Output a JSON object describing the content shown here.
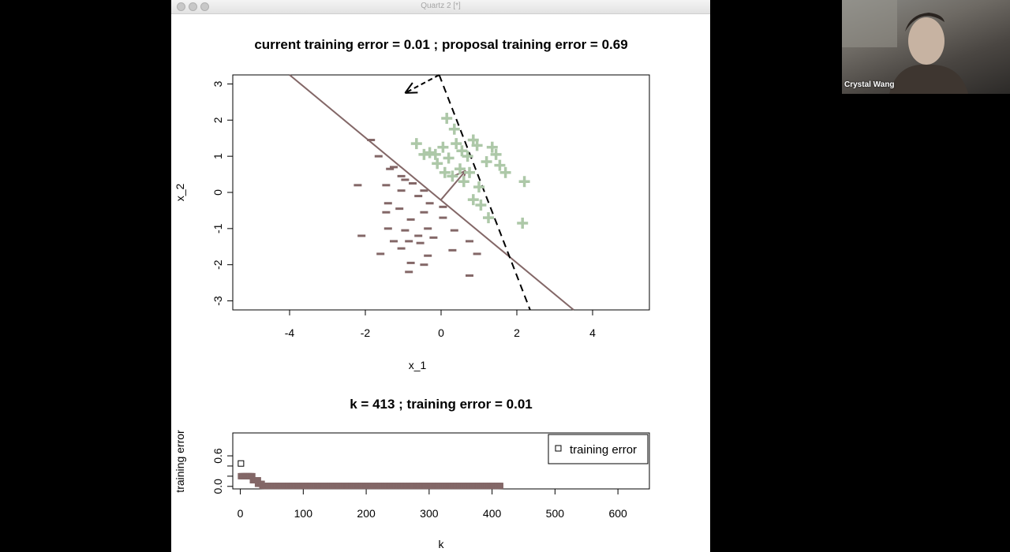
{
  "window": {
    "title": "Quartz 2 [*]"
  },
  "video": {
    "participant_name": "Crystal Wang"
  },
  "chart_data": [
    {
      "type": "scatter",
      "title": "current training error =  0.01 ; proposal training error =  0.69",
      "xlabel": "x_1",
      "ylabel": "x_2",
      "xlim": [
        -5.5,
        5.5
      ],
      "ylim": [
        -3.25,
        3.25
      ],
      "x_ticks": [
        -4,
        -2,
        0,
        2,
        4
      ],
      "y_ticks": [
        -3,
        -2,
        -1,
        0,
        1,
        2,
        3
      ],
      "colors": {
        "positive": "#adc8a8",
        "negative": "#836767",
        "current_line": "#836767",
        "proposal_line": "#000000"
      },
      "series": [
        {
          "marker": "+",
          "points": [
            [
              0.15,
              2.05
            ],
            [
              0.35,
              1.75
            ],
            [
              0.85,
              1.45
            ],
            [
              1.35,
              1.25
            ],
            [
              -0.65,
              1.35
            ],
            [
              -0.3,
              1.1
            ],
            [
              0.05,
              1.25
            ],
            [
              0.55,
              1.15
            ],
            [
              0.95,
              1.3
            ],
            [
              1.45,
              1.05
            ],
            [
              1.55,
              0.75
            ],
            [
              1.2,
              0.85
            ],
            [
              -0.1,
              0.8
            ],
            [
              0.2,
              0.95
            ],
            [
              0.5,
              0.65
            ],
            [
              0.75,
              0.55
            ],
            [
              0.3,
              0.45
            ],
            [
              0.6,
              0.3
            ],
            [
              -0.15,
              1.05
            ],
            [
              0.1,
              0.55
            ],
            [
              1.0,
              0.15
            ],
            [
              0.85,
              -0.2
            ],
            [
              1.05,
              -0.35
            ],
            [
              1.25,
              -0.7
            ],
            [
              2.2,
              0.3
            ],
            [
              2.15,
              -0.85
            ],
            [
              -0.45,
              1.05
            ],
            [
              0.7,
              1.0
            ],
            [
              1.7,
              0.55
            ],
            [
              0.4,
              1.35
            ]
          ]
        },
        {
          "marker": "-",
          "points": [
            [
              -1.85,
              1.45
            ],
            [
              -1.65,
              1.0
            ],
            [
              -1.35,
              0.65
            ],
            [
              -1.25,
              0.7
            ],
            [
              -1.05,
              0.45
            ],
            [
              -0.75,
              0.25
            ],
            [
              -0.45,
              0.05
            ],
            [
              -2.2,
              0.2
            ],
            [
              -1.45,
              0.2
            ],
            [
              -0.95,
              0.35
            ],
            [
              -1.05,
              0.05
            ],
            [
              -0.6,
              -0.1
            ],
            [
              -1.4,
              -0.3
            ],
            [
              -1.45,
              -0.55
            ],
            [
              -1.1,
              -0.45
            ],
            [
              -0.3,
              -0.3
            ],
            [
              -0.45,
              -0.55
            ],
            [
              -0.8,
              -0.75
            ],
            [
              0.05,
              -0.7
            ],
            [
              -1.4,
              -1.0
            ],
            [
              -0.95,
              -1.05
            ],
            [
              -0.35,
              -1.0
            ],
            [
              0.35,
              -1.05
            ],
            [
              -2.1,
              -1.2
            ],
            [
              -0.6,
              -1.2
            ],
            [
              -0.2,
              -1.25
            ],
            [
              -0.55,
              -1.4
            ],
            [
              -0.85,
              -1.35
            ],
            [
              0.75,
              -1.35
            ],
            [
              -1.05,
              -1.55
            ],
            [
              -0.35,
              -1.75
            ],
            [
              0.3,
              -1.6
            ],
            [
              -1.6,
              -1.7
            ],
            [
              -0.8,
              -1.95
            ],
            [
              -0.45,
              -2.0
            ],
            [
              0.95,
              -1.7
            ],
            [
              0.75,
              -2.3
            ],
            [
              -0.85,
              -2.2
            ],
            [
              -1.25,
              -1.35
            ],
            [
              0.05,
              -0.4
            ]
          ]
        }
      ],
      "current_line": [
        [
          -4.0,
          3.25
        ],
        [
          3.5,
          -3.25
        ]
      ],
      "proposal_line": [
        [
          -0.05,
          3.25
        ],
        [
          2.35,
          -3.25
        ]
      ],
      "current_arrow": [
        [
          0.0,
          -0.2
        ],
        [
          0.65,
          0.6
        ]
      ],
      "proposal_arrow": [
        [
          -0.05,
          3.25
        ],
        [
          -0.95,
          2.75
        ]
      ]
    },
    {
      "type": "scatter",
      "title": "k =  413 ; training error =  0.01",
      "xlabel": "k",
      "ylabel": "training error",
      "xlim": [
        -12,
        650
      ],
      "ylim": [
        -0.05,
        1.05
      ],
      "x_ticks": [
        0,
        100,
        200,
        300,
        400,
        500,
        600
      ],
      "y_ticks": [
        0.0,
        0.2,
        0.4,
        0.6
      ],
      "y_tick_labels": [
        "0.0",
        "",
        "",
        "0.6"
      ],
      "legend": {
        "position": "top-right",
        "entries": [
          "training error"
        ]
      },
      "colors": {
        "points": "#836767"
      },
      "series": [
        {
          "name": "training error",
          "steps": [
            {
              "from": 1,
              "to": 20,
              "value": 0.2
            },
            {
              "from": 20,
              "to": 28,
              "value": 0.12
            },
            {
              "from": 28,
              "to": 35,
              "value": 0.05
            },
            {
              "from": 35,
              "to": 413,
              "value": 0.01
            }
          ],
          "points": [
            [
              1,
              0.45
            ]
          ]
        }
      ]
    }
  ]
}
